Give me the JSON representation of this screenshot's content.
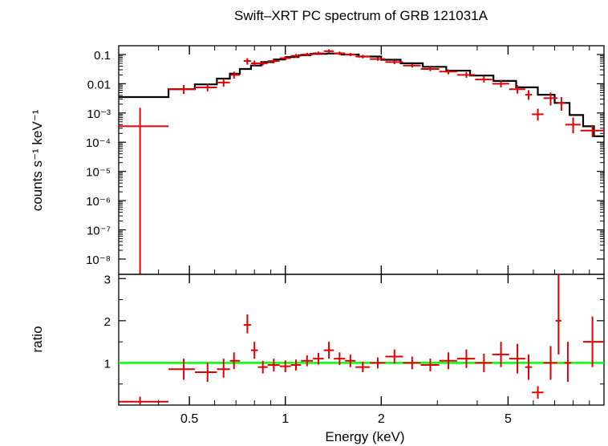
{
  "title": "Swift–XRT PC spectrum of GRB 121031A",
  "chart_data": [
    {
      "type": "scatter",
      "panel": "spectrum",
      "xlabel": "Energy (keV)",
      "ylabel": "counts s⁻¹ keV⁻¹",
      "xscale": "log",
      "yscale": "log",
      "xlim": [
        0.3,
        10
      ],
      "ylim": [
        3e-09,
        0.2
      ],
      "y_tick_labels": [
        "0.1",
        "0.01",
        "10⁻³",
        "10⁻⁴",
        "10⁻⁵",
        "10⁻⁶",
        "10⁻⁷",
        "10⁻⁸"
      ],
      "y_tick_values": [
        0.1,
        0.01,
        0.001,
        0.0001,
        1e-05,
        1e-06,
        1e-07,
        1e-08
      ],
      "data_color": "#e00000",
      "model_color": "#000000",
      "data_points": [
        {
          "x": 0.35,
          "xlo": 0.3,
          "xhi": 0.43,
          "y": 0.00035,
          "ylo": 3e-09,
          "yhi": 0.0015
        },
        {
          "x": 0.48,
          "xlo": 0.43,
          "xhi": 0.52,
          "y": 0.0065,
          "ylo": 0.0045,
          "yhi": 0.009
        },
        {
          "x": 0.57,
          "xlo": 0.52,
          "xhi": 0.61,
          "y": 0.0075,
          "ylo": 0.0055,
          "yhi": 0.01
        },
        {
          "x": 0.64,
          "xlo": 0.61,
          "xhi": 0.67,
          "y": 0.011,
          "ylo": 0.008,
          "yhi": 0.015
        },
        {
          "x": 0.69,
          "xlo": 0.67,
          "xhi": 0.72,
          "y": 0.02,
          "ylo": 0.015,
          "yhi": 0.026
        },
        {
          "x": 0.76,
          "xlo": 0.74,
          "xhi": 0.78,
          "y": 0.06,
          "ylo": 0.045,
          "yhi": 0.075
        },
        {
          "x": 0.8,
          "xlo": 0.78,
          "xhi": 0.82,
          "y": 0.05,
          "ylo": 0.04,
          "yhi": 0.062
        },
        {
          "x": 0.85,
          "xlo": 0.82,
          "xhi": 0.88,
          "y": 0.05,
          "ylo": 0.042,
          "yhi": 0.06
        },
        {
          "x": 0.92,
          "xlo": 0.88,
          "xhi": 0.96,
          "y": 0.06,
          "ylo": 0.05,
          "yhi": 0.07
        },
        {
          "x": 1.0,
          "xlo": 0.96,
          "xhi": 1.04,
          "y": 0.075,
          "ylo": 0.065,
          "yhi": 0.088
        },
        {
          "x": 1.08,
          "xlo": 1.04,
          "xhi": 1.12,
          "y": 0.09,
          "ylo": 0.078,
          "yhi": 0.104
        },
        {
          "x": 1.17,
          "xlo": 1.12,
          "xhi": 1.22,
          "y": 0.1,
          "ylo": 0.088,
          "yhi": 0.115
        },
        {
          "x": 1.27,
          "xlo": 1.22,
          "xhi": 1.32,
          "y": 0.11,
          "ylo": 0.096,
          "yhi": 0.126
        },
        {
          "x": 1.37,
          "xlo": 1.32,
          "xhi": 1.42,
          "y": 0.13,
          "ylo": 0.113,
          "yhi": 0.15
        },
        {
          "x": 1.48,
          "xlo": 1.42,
          "xhi": 1.54,
          "y": 0.11,
          "ylo": 0.096,
          "yhi": 0.126
        },
        {
          "x": 1.6,
          "xlo": 1.54,
          "xhi": 1.66,
          "y": 0.1,
          "ylo": 0.088,
          "yhi": 0.114
        },
        {
          "x": 1.75,
          "xlo": 1.66,
          "xhi": 1.84,
          "y": 0.085,
          "ylo": 0.074,
          "yhi": 0.097
        },
        {
          "x": 1.95,
          "xlo": 1.84,
          "xhi": 2.06,
          "y": 0.07,
          "ylo": 0.061,
          "yhi": 0.08
        },
        {
          "x": 2.2,
          "xlo": 2.06,
          "xhi": 2.34,
          "y": 0.055,
          "ylo": 0.047,
          "yhi": 0.063
        },
        {
          "x": 2.5,
          "xlo": 2.34,
          "xhi": 2.66,
          "y": 0.042,
          "ylo": 0.036,
          "yhi": 0.049
        },
        {
          "x": 2.85,
          "xlo": 2.66,
          "xhi": 3.04,
          "y": 0.032,
          "ylo": 0.027,
          "yhi": 0.038
        },
        {
          "x": 3.25,
          "xlo": 3.04,
          "xhi": 3.46,
          "y": 0.026,
          "ylo": 0.021,
          "yhi": 0.031
        },
        {
          "x": 3.7,
          "xlo": 3.46,
          "xhi": 3.94,
          "y": 0.02,
          "ylo": 0.016,
          "yhi": 0.025
        },
        {
          "x": 4.2,
          "xlo": 3.94,
          "xhi": 4.46,
          "y": 0.014,
          "ylo": 0.011,
          "yhi": 0.018
        },
        {
          "x": 4.75,
          "xlo": 4.46,
          "xhi": 5.04,
          "y": 0.01,
          "ylo": 0.0075,
          "yhi": 0.013
        },
        {
          "x": 5.35,
          "xlo": 5.04,
          "xhi": 5.66,
          "y": 0.0065,
          "ylo": 0.0046,
          "yhi": 0.009
        },
        {
          "x": 5.8,
          "xlo": 5.66,
          "xhi": 5.94,
          "y": 0.0042,
          "ylo": 0.0028,
          "yhi": 0.006
        },
        {
          "x": 6.2,
          "xlo": 5.94,
          "xhi": 6.46,
          "y": 0.0009,
          "ylo": 0.00055,
          "yhi": 0.0014
        },
        {
          "x": 6.8,
          "xlo": 6.46,
          "xhi": 7.14,
          "y": 0.0032,
          "ylo": 0.0018,
          "yhi": 0.005
        },
        {
          "x": 7.35,
          "xlo": 7.14,
          "xhi": 7.56,
          "y": 0.0022,
          "ylo": 0.0012,
          "yhi": 0.0035
        },
        {
          "x": 8.0,
          "xlo": 7.56,
          "xhi": 8.44,
          "y": 0.0004,
          "ylo": 0.0002,
          "yhi": 0.0007
        },
        {
          "x": 9.2,
          "xlo": 8.44,
          "xhi": 10.0,
          "y": 0.00025,
          "ylo": 0.00015,
          "yhi": 0.00038
        }
      ],
      "model_steps": [
        {
          "xlo": 0.3,
          "xhi": 0.43,
          "y": 0.0035
        },
        {
          "xlo": 0.43,
          "xhi": 0.52,
          "y": 0.0065
        },
        {
          "xlo": 0.52,
          "xhi": 0.61,
          "y": 0.0095
        },
        {
          "xlo": 0.61,
          "xhi": 0.67,
          "y": 0.015
        },
        {
          "xlo": 0.67,
          "xhi": 0.72,
          "y": 0.022
        },
        {
          "xlo": 0.72,
          "xhi": 0.78,
          "y": 0.032
        },
        {
          "xlo": 0.78,
          "xhi": 0.84,
          "y": 0.042
        },
        {
          "xlo": 0.84,
          "xhi": 0.92,
          "y": 0.055
        },
        {
          "xlo": 0.92,
          "xhi": 1.0,
          "y": 0.068
        },
        {
          "xlo": 1.0,
          "xhi": 1.1,
          "y": 0.082
        },
        {
          "xlo": 1.1,
          "xhi": 1.2,
          "y": 0.095
        },
        {
          "xlo": 1.2,
          "xhi": 1.35,
          "y": 0.105
        },
        {
          "xlo": 1.35,
          "xhi": 1.5,
          "y": 0.108
        },
        {
          "xlo": 1.5,
          "xhi": 1.7,
          "y": 0.1
        },
        {
          "xlo": 1.7,
          "xhi": 2.0,
          "y": 0.085
        },
        {
          "xlo": 2.0,
          "xhi": 2.3,
          "y": 0.066
        },
        {
          "xlo": 2.3,
          "xhi": 2.7,
          "y": 0.05
        },
        {
          "xlo": 2.7,
          "xhi": 3.2,
          "y": 0.038
        },
        {
          "xlo": 3.2,
          "xhi": 3.8,
          "y": 0.028
        },
        {
          "xlo": 3.8,
          "xhi": 4.5,
          "y": 0.019
        },
        {
          "xlo": 4.5,
          "xhi": 5.3,
          "y": 0.0125
        },
        {
          "xlo": 5.3,
          "xhi": 6.2,
          "y": 0.0075
        },
        {
          "xlo": 6.2,
          "xhi": 7.0,
          "y": 0.0042
        },
        {
          "xlo": 7.0,
          "xhi": 7.8,
          "y": 0.0022
        },
        {
          "xlo": 7.8,
          "xhi": 8.6,
          "y": 0.00085
        },
        {
          "xlo": 8.6,
          "xhi": 9.3,
          "y": 0.00035
        },
        {
          "xlo": 9.3,
          "xhi": 10.0,
          "y": 0.00016
        }
      ]
    },
    {
      "type": "scatter",
      "panel": "ratio",
      "xlabel": "Energy (keV)",
      "ylabel": "ratio",
      "xscale": "log",
      "xlim": [
        0.3,
        10
      ],
      "ylim": [
        0,
        3.1
      ],
      "x_tick_labels": [
        "0.5",
        "1",
        "2",
        "5"
      ],
      "x_tick_values": [
        0.5,
        1,
        2,
        5
      ],
      "y_tick_labels": [
        "1",
        "2",
        "3"
      ],
      "y_tick_values": [
        1,
        2,
        3
      ],
      "reference_line": {
        "y": 1,
        "color": "#00ff00"
      },
      "data_color": "#e00000",
      "data_points": [
        {
          "x": 0.35,
          "xlo": 0.3,
          "xhi": 0.43,
          "y": 0.08,
          "ylo": 0.0,
          "yhi": 0.2
        },
        {
          "x": 0.48,
          "xlo": 0.43,
          "xhi": 0.52,
          "y": 0.85,
          "ylo": 0.6,
          "yhi": 1.1
        },
        {
          "x": 0.57,
          "xlo": 0.52,
          "xhi": 0.61,
          "y": 0.78,
          "ylo": 0.55,
          "yhi": 1.0
        },
        {
          "x": 0.64,
          "xlo": 0.61,
          "xhi": 0.67,
          "y": 0.85,
          "ylo": 0.65,
          "yhi": 1.1
        },
        {
          "x": 0.69,
          "xlo": 0.67,
          "xhi": 0.72,
          "y": 1.05,
          "ylo": 0.85,
          "yhi": 1.25
        },
        {
          "x": 0.76,
          "xlo": 0.74,
          "xhi": 0.78,
          "y": 1.9,
          "ylo": 1.7,
          "yhi": 2.15
        },
        {
          "x": 0.8,
          "xlo": 0.78,
          "xhi": 0.82,
          "y": 1.3,
          "ylo": 1.1,
          "yhi": 1.5
        },
        {
          "x": 0.85,
          "xlo": 0.82,
          "xhi": 0.88,
          "y": 0.9,
          "ylo": 0.75,
          "yhi": 1.05
        },
        {
          "x": 0.92,
          "xlo": 0.88,
          "xhi": 0.96,
          "y": 0.95,
          "ylo": 0.8,
          "yhi": 1.1
        },
        {
          "x": 1.0,
          "xlo": 0.96,
          "xhi": 1.04,
          "y": 0.92,
          "ylo": 0.78,
          "yhi": 1.06
        },
        {
          "x": 1.08,
          "xlo": 1.04,
          "xhi": 1.12,
          "y": 0.95,
          "ylo": 0.82,
          "yhi": 1.08
        },
        {
          "x": 1.17,
          "xlo": 1.12,
          "xhi": 1.22,
          "y": 1.05,
          "ylo": 0.92,
          "yhi": 1.18
        },
        {
          "x": 1.27,
          "xlo": 1.22,
          "xhi": 1.32,
          "y": 1.1,
          "ylo": 0.96,
          "yhi": 1.24
        },
        {
          "x": 1.37,
          "xlo": 1.32,
          "xhi": 1.42,
          "y": 1.3,
          "ylo": 1.1,
          "yhi": 1.5
        },
        {
          "x": 1.48,
          "xlo": 1.42,
          "xhi": 1.54,
          "y": 1.1,
          "ylo": 0.95,
          "yhi": 1.25
        },
        {
          "x": 1.6,
          "xlo": 1.54,
          "xhi": 1.66,
          "y": 1.05,
          "ylo": 0.9,
          "yhi": 1.2
        },
        {
          "x": 1.75,
          "xlo": 1.66,
          "xhi": 1.84,
          "y": 0.9,
          "ylo": 0.78,
          "yhi": 1.03
        },
        {
          "x": 1.95,
          "xlo": 1.84,
          "xhi": 2.06,
          "y": 1.0,
          "ylo": 0.87,
          "yhi": 1.13
        },
        {
          "x": 2.2,
          "xlo": 2.06,
          "xhi": 2.34,
          "y": 1.15,
          "ylo": 0.98,
          "yhi": 1.32
        },
        {
          "x": 2.5,
          "xlo": 2.34,
          "xhi": 2.66,
          "y": 1.0,
          "ylo": 0.85,
          "yhi": 1.15
        },
        {
          "x": 2.85,
          "xlo": 2.66,
          "xhi": 3.04,
          "y": 0.95,
          "ylo": 0.8,
          "yhi": 1.1
        },
        {
          "x": 3.25,
          "xlo": 3.04,
          "xhi": 3.46,
          "y": 1.05,
          "ylo": 0.85,
          "yhi": 1.25
        },
        {
          "x": 3.7,
          "xlo": 3.46,
          "xhi": 3.94,
          "y": 1.1,
          "ylo": 0.88,
          "yhi": 1.32
        },
        {
          "x": 4.2,
          "xlo": 3.94,
          "xhi": 4.46,
          "y": 1.0,
          "ylo": 0.78,
          "yhi": 1.22
        },
        {
          "x": 4.75,
          "xlo": 4.46,
          "xhi": 5.04,
          "y": 1.2,
          "ylo": 0.9,
          "yhi": 1.5
        },
        {
          "x": 5.35,
          "xlo": 5.04,
          "xhi": 5.66,
          "y": 1.1,
          "ylo": 0.75,
          "yhi": 1.45
        },
        {
          "x": 5.8,
          "xlo": 5.66,
          "xhi": 5.94,
          "y": 0.9,
          "ylo": 0.6,
          "yhi": 1.2
        },
        {
          "x": 6.2,
          "xlo": 5.94,
          "xhi": 6.46,
          "y": 0.3,
          "ylo": 0.15,
          "yhi": 0.45
        },
        {
          "x": 6.8,
          "xlo": 6.46,
          "xhi": 7.14,
          "y": 1.0,
          "ylo": 0.6,
          "yhi": 1.4
        },
        {
          "x": 7.2,
          "xlo": 7.05,
          "xhi": 7.35,
          "y": 2.0,
          "ylo": 1.2,
          "yhi": 3.1
        },
        {
          "x": 7.7,
          "xlo": 7.5,
          "xhi": 7.9,
          "y": 1.0,
          "ylo": 0.55,
          "yhi": 1.5
        },
        {
          "x": 9.2,
          "xlo": 8.6,
          "xhi": 10.0,
          "y": 1.5,
          "ylo": 0.9,
          "yhi": 2.1
        }
      ]
    }
  ]
}
